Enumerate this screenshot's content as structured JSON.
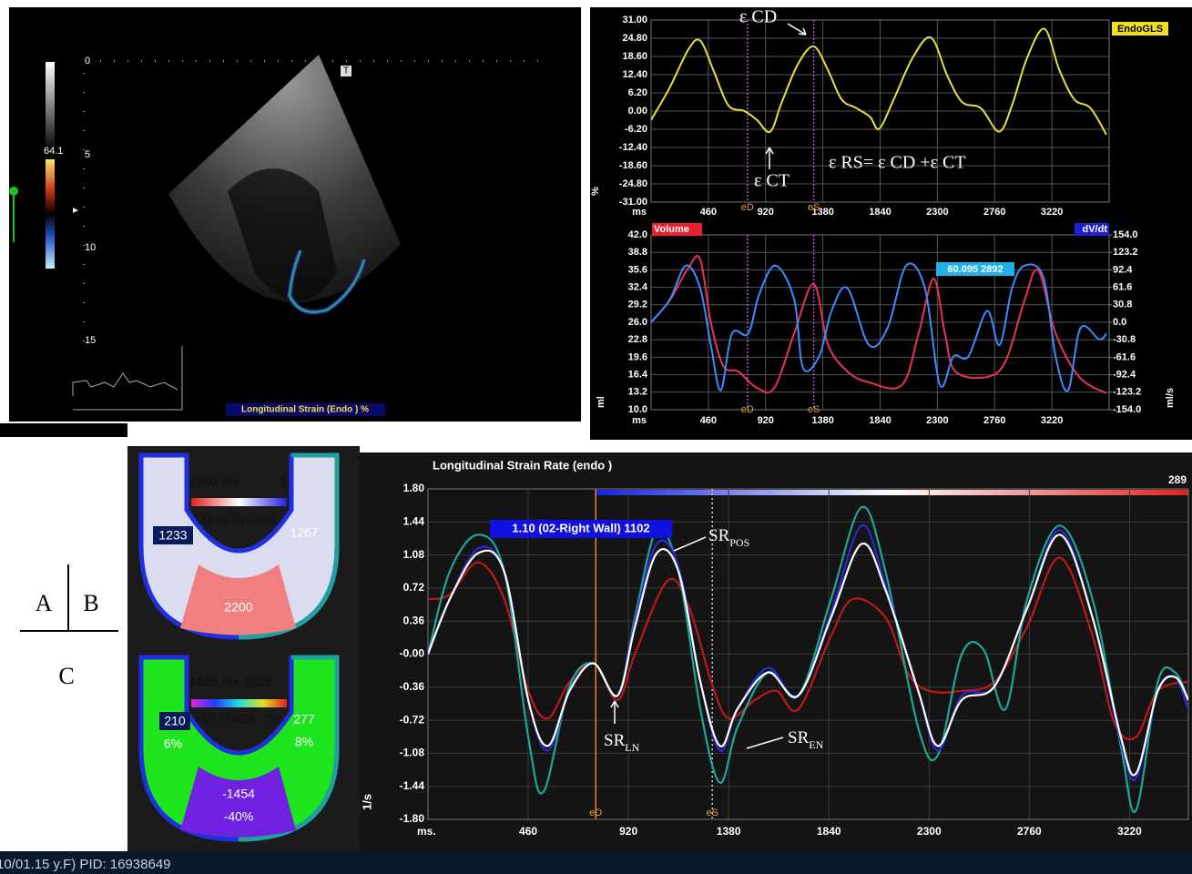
{
  "echo": {
    "caption": "Longitudinal Strain (Endo ) %",
    "scale_value": "64.1",
    "depth": [
      "0",
      "5",
      "10",
      "15"
    ],
    "marker": "T"
  },
  "bullseye": [
    {
      "header": "2900 ms",
      "header_right": "1",
      "caption": "Time To Peak",
      "left": "1233",
      "right": "1267",
      "bottom": "2200"
    },
    {
      "header": "1825 ms-1825",
      "caption_left": "+50",
      "caption": "Phase",
      "caption_right": "-50",
      "left": "210",
      "left_pct": "6%",
      "right": "277",
      "right_pct": "8%",
      "bottom": "-1454",
      "bottom_pct": "-40%"
    }
  ],
  "layout_labels": [
    "A",
    "B",
    "C"
  ],
  "footer": "10/01.15 y.F) PID: 16938649",
  "chart_data": [
    {
      "type": "line",
      "x_label": "ms",
      "y_label": "%",
      "xlim": [
        0,
        3680
      ],
      "xticks": [
        460,
        920,
        1380,
        1840,
        2300,
        2760,
        3220
      ],
      "ylim": [
        -31,
        31
      ],
      "yticks": [
        {
          "value": 31,
          "label": "31.00"
        },
        {
          "value": 24.8,
          "label": "24.80"
        },
        {
          "value": 18.6,
          "label": "18.60"
        },
        {
          "value": 12.4,
          "label": "12.40"
        },
        {
          "value": 6.2,
          "label": "6.20"
        },
        {
          "value": 0,
          "label": "0.00"
        },
        {
          "value": -6.2,
          "label": "-6.20"
        },
        {
          "value": -12.4,
          "label": "-12.40"
        },
        {
          "value": -18.6,
          "label": "-18.60"
        },
        {
          "value": -24.8,
          "label": "-24.80"
        },
        {
          "value": -31,
          "label": "-31.00"
        }
      ],
      "grid": true,
      "events": [
        {
          "label": "eD",
          "x": 774
        },
        {
          "label": "eS",
          "x": 1307
        }
      ],
      "annotations": [
        "ε CD",
        "ε CT",
        "ε RS= ε CD +ε CT"
      ],
      "series": [
        {
          "name": "EndoGLS",
          "color": "#e6e03c",
          "x": [
            0,
            150,
            300,
            394,
            500,
            620,
            750,
            850,
            957,
            1050,
            1180,
            1307,
            1420,
            1530,
            1650,
            1760,
            1833,
            1950,
            2100,
            2249,
            2380,
            2500,
            2650,
            2796,
            2900,
            3020,
            3160,
            3280,
            3400,
            3530,
            3658
          ],
          "values": [
            -3,
            8,
            21,
            24,
            14,
            2,
            0,
            -3,
            -7,
            3,
            16,
            22,
            14,
            4,
            1,
            -2,
            -6,
            4,
            18,
            25,
            12,
            3,
            1,
            -7,
            2,
            18,
            28,
            14,
            4,
            1,
            -8
          ]
        }
      ]
    },
    {
      "type": "line",
      "x_label": "ms",
      "y_label": "ml",
      "y2_label": "ml/s",
      "tooltip": "60.095  2892",
      "xlim": [
        0,
        3680
      ],
      "xticks": [
        460,
        920,
        1380,
        1840,
        2300,
        2760,
        3220
      ],
      "ylim": [
        10,
        42
      ],
      "yticks": [
        {
          "value": 42,
          "label": "42.0"
        },
        38.8,
        35.6,
        32.4,
        29.2,
        {
          "value": 26,
          "label": "26.0"
        },
        22.8,
        19.6,
        16.4,
        13.2,
        {
          "value": 10,
          "label": "10.0"
        }
      ],
      "y2lim": [
        -154,
        154
      ],
      "y2ticks": [
        {
          "value": 154,
          "label": "154.0"
        },
        123.2,
        92.4,
        61.6,
        30.8,
        {
          "value": 0,
          "label": "0.0"
        },
        -30.8,
        -61.6,
        -92.4,
        -123.2,
        {
          "value": -154,
          "label": "-154.0"
        }
      ],
      "grid": true,
      "events": [
        {
          "label": "eD",
          "x": 774
        },
        {
          "label": "eS",
          "x": 1307
        }
      ],
      "series": [
        {
          "name": "Volume",
          "color": "#e8325a",
          "x": [
            0,
            150,
            300,
            394,
            480,
            580,
            700,
            850,
            990,
            1150,
            1307,
            1420,
            1577,
            1750,
            2015,
            2150,
            2270,
            2360,
            2445,
            2700,
            2850,
            3000,
            3110,
            3250,
            3440,
            3658
          ],
          "values": [
            26,
            30,
            36,
            37.5,
            26,
            18,
            17,
            14,
            14,
            24,
            33,
            22,
            17,
            15,
            14.5,
            24,
            34,
            24,
            17,
            16,
            19,
            30,
            35.5,
            24,
            16,
            13
          ]
        },
        {
          "name": "dV/dt",
          "color": "#3a8cff",
          "axis": "y2",
          "x": [
            0,
            150,
            280,
            394,
            480,
            560,
            650,
            780,
            870,
            1000,
            1150,
            1220,
            1350,
            1450,
            1577,
            1750,
            1900,
            2050,
            2200,
            2320,
            2430,
            2550,
            2700,
            2800,
            2900,
            3000,
            3150,
            3250,
            3350,
            3450,
            3600,
            3658
          ],
          "values": [
            0,
            40,
            100,
            60,
            -40,
            -120,
            -20,
            -20,
            50,
            100,
            40,
            -80,
            -60,
            20,
            60,
            -40,
            -10,
            100,
            60,
            -110,
            -60,
            -60,
            20,
            -40,
            60,
            100,
            80,
            -60,
            -120,
            -10,
            -30,
            -20
          ]
        }
      ]
    },
    {
      "type": "line",
      "title": "Longitudinal Strain Rate (endo )",
      "x_label": "ms.",
      "y_label": "1/s",
      "corner_label": "289",
      "tooltip": "1.10 (02-Right Wall)  1102",
      "xlim": [
        0,
        3490
      ],
      "xticks": [
        460,
        920,
        1380,
        1840,
        2300,
        2760,
        3220
      ],
      "ylim": [
        -1.8,
        1.8
      ],
      "yticks": [
        {
          "value": 1.8,
          "label": "1.80"
        },
        1.44,
        1.08,
        0.72,
        0.36,
        {
          "value": 0,
          "label": "-0.00"
        },
        -0.36,
        -0.72,
        -1.08,
        -1.44,
        {
          "value": -1.8,
          "label": "-1.80"
        }
      ],
      "grid": true,
      "events": [
        {
          "label": "eD",
          "x": 770
        },
        {
          "label": "eS",
          "x": 1305
        }
      ],
      "annotations": [
        {
          "text": "SR",
          "sub": "POS"
        },
        {
          "text": "SR",
          "sub": "LN"
        },
        {
          "text": "SR",
          "sub": "EN"
        }
      ],
      "series": [
        {
          "color": "#c01818",
          "x": [
            0,
            100,
            230,
            350,
            460,
            550,
            650,
            760,
            870,
            950,
            1100,
            1200,
            1300,
            1380,
            1500,
            1600,
            1700,
            1850,
            1950,
            2100,
            2200,
            2300,
            2450,
            2600,
            2750,
            2900,
            3050,
            3150,
            3250,
            3350,
            3490
          ],
          "values": [
            0.6,
            0.65,
            1.0,
            0.6,
            -0.4,
            -0.7,
            -0.3,
            -0.1,
            -0.5,
            0.0,
            0.8,
            0.5,
            -0.3,
            -0.7,
            -0.5,
            -0.4,
            -0.6,
            0.2,
            0.6,
            0.4,
            -0.2,
            -0.4,
            -0.4,
            -0.3,
            0.3,
            1.05,
            0.2,
            -0.75,
            -0.9,
            -0.4,
            -0.3
          ]
        },
        {
          "color": "#1aa898",
          "x": [
            0,
            100,
            230,
            350,
            460,
            530,
            650,
            760,
            870,
            950,
            1050,
            1150,
            1250,
            1340,
            1420,
            1560,
            1700,
            1850,
            1990,
            2100,
            2250,
            2340,
            2450,
            2550,
            2650,
            2750,
            2900,
            3050,
            3180,
            3250,
            3350,
            3430,
            3490
          ],
          "values": [
            0,
            0.9,
            1.3,
            0.9,
            -0.9,
            -1.5,
            -0.35,
            -0.1,
            -0.45,
            0.4,
            1.35,
            0.9,
            -0.6,
            -1.4,
            -0.8,
            -0.2,
            -0.45,
            0.6,
            1.6,
            0.9,
            -0.8,
            -1.1,
            0.0,
            0.05,
            -0.6,
            0.6,
            1.4,
            0.6,
            -1.0,
            -1.7,
            -0.3,
            -0.2,
            -0.5
          ]
        },
        {
          "color": "#2a2ad8",
          "x": [
            0,
            100,
            230,
            350,
            460,
            550,
            650,
            760,
            870,
            950,
            1050,
            1150,
            1250,
            1340,
            1420,
            1560,
            1700,
            1850,
            1990,
            2100,
            2250,
            2340,
            2450,
            2600,
            2750,
            2900,
            3050,
            3180,
            3250,
            3350,
            3430,
            3490
          ],
          "values": [
            0,
            0.6,
            1.15,
            0.9,
            -0.5,
            -1.05,
            -0.4,
            -0.1,
            -0.45,
            0.35,
            1.2,
            0.95,
            -0.3,
            -1.05,
            -0.6,
            -0.15,
            -0.45,
            0.45,
            1.4,
            0.75,
            -0.4,
            -1.05,
            -0.45,
            -0.35,
            0.5,
            1.35,
            0.4,
            -0.95,
            -1.35,
            -0.4,
            -0.25,
            -0.6
          ]
        },
        {
          "color": "#ffffff",
          "x": [
            0,
            100,
            230,
            350,
            460,
            550,
            650,
            760,
            870,
            950,
            1050,
            1150,
            1250,
            1340,
            1420,
            1560,
            1700,
            1850,
            1990,
            2100,
            2250,
            2340,
            2450,
            2600,
            2750,
            2900,
            3050,
            3180,
            3250,
            3350,
            3430,
            3490
          ],
          "values": [
            0,
            0.6,
            1.1,
            0.9,
            -0.5,
            -1.0,
            -0.4,
            -0.1,
            -0.45,
            0.3,
            1.1,
            0.9,
            -0.3,
            -1.0,
            -0.6,
            -0.2,
            -0.45,
            0.4,
            1.2,
            0.7,
            -0.4,
            -1.0,
            -0.5,
            -0.35,
            0.5,
            1.3,
            0.4,
            -0.9,
            -1.3,
            -0.4,
            -0.25,
            -0.5
          ]
        }
      ]
    }
  ]
}
